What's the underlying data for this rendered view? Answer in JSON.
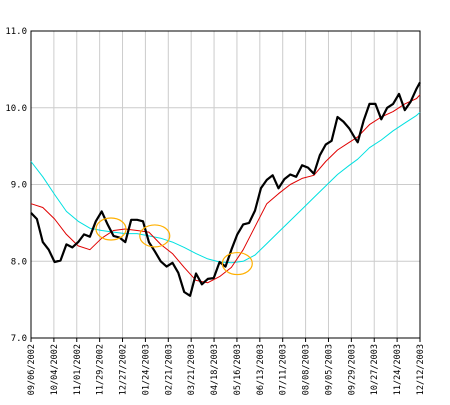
{
  "chart_data": {
    "type": "line",
    "title": "",
    "xlabel": "",
    "ylabel": "",
    "ylim": [
      7.0,
      11.0
    ],
    "y_ticks": [
      7.0,
      8.0,
      9.0,
      10.0,
      11.0
    ],
    "y_tick_labels": [
      "7.0",
      "8.0",
      "9.0",
      "10.0",
      "11.0"
    ],
    "x_range": [
      "2002-09-06",
      "2003-12-12"
    ],
    "x_tick_labels": [
      "09/06/2002",
      "10/04/2002",
      "11/01/2002",
      "11/29/2002",
      "12/27/2002",
      "01/24/2003",
      "02/21/2003",
      "03/21/2003",
      "04/18/2003",
      "05/16/2003",
      "06/13/2003",
      "07/11/2003",
      "08/08/2003",
      "09/05/2003",
      "09/29/2003",
      "10/27/2003",
      "11/24/2003",
      "12/12/2003"
    ],
    "grid": true,
    "legend": "none",
    "colors": {
      "price": "#000000",
      "fast_average": "#e00000",
      "slow_average": "#00e0e0",
      "crossover_markers": "#ffb000",
      "grid": "#cccccc"
    },
    "series": [
      {
        "key": "price",
        "x": [
          "2002-09-06",
          "2002-09-13",
          "2002-09-20",
          "2002-09-27",
          "2002-10-04",
          "2002-10-11",
          "2002-10-18",
          "2002-10-25",
          "2002-11-01",
          "2002-11-08",
          "2002-11-15",
          "2002-11-22",
          "2002-11-29",
          "2002-12-06",
          "2002-12-13",
          "2002-12-20",
          "2002-12-27",
          "2003-01-03",
          "2003-01-10",
          "2003-01-17",
          "2003-01-24",
          "2003-01-31",
          "2003-02-07",
          "2003-02-14",
          "2003-02-21",
          "2003-02-28",
          "2003-03-07",
          "2003-03-14",
          "2003-03-21",
          "2003-03-28",
          "2003-04-04",
          "2003-04-11",
          "2003-04-18",
          "2003-04-25",
          "2003-05-02",
          "2003-05-09",
          "2003-05-16",
          "2003-05-23",
          "2003-05-30",
          "2003-06-06",
          "2003-06-13",
          "2003-06-20",
          "2003-06-27",
          "2003-07-04",
          "2003-07-11",
          "2003-07-18",
          "2003-07-25",
          "2003-08-01",
          "2003-08-08",
          "2003-08-15",
          "2003-08-22",
          "2003-08-29",
          "2003-09-05",
          "2003-09-12",
          "2003-09-19",
          "2003-09-26",
          "2003-09-29",
          "2003-10-06",
          "2003-10-13",
          "2003-10-20",
          "2003-10-27",
          "2003-11-03",
          "2003-11-10",
          "2003-11-17",
          "2003-11-24",
          "2003-12-01",
          "2003-12-08",
          "2003-12-12"
        ],
        "values": [
          8.63,
          8.55,
          8.25,
          8.15,
          7.99,
          8.01,
          8.22,
          8.18,
          8.25,
          8.35,
          8.32,
          8.52,
          8.65,
          8.48,
          8.33,
          8.31,
          8.25,
          8.54,
          8.54,
          8.52,
          8.25,
          8.13,
          8.0,
          7.93,
          7.98,
          7.85,
          7.6,
          7.55,
          7.84,
          7.7,
          7.77,
          7.78,
          7.99,
          7.93,
          8.15,
          8.35,
          8.48,
          8.5,
          8.66,
          8.95,
          9.06,
          9.12,
          8.95,
          9.07,
          9.13,
          9.1,
          9.25,
          9.22,
          9.14,
          9.38,
          9.52,
          9.57,
          9.88,
          9.82,
          9.73,
          9.6,
          9.55,
          9.83,
          10.05,
          10.05,
          9.85,
          10.0,
          10.05,
          10.18,
          9.97,
          10.08,
          10.25,
          10.33
        ]
      },
      {
        "key": "fast_average",
        "x": [
          "2002-09-06",
          "2002-09-20",
          "2002-10-04",
          "2002-10-18",
          "2002-11-01",
          "2002-11-15",
          "2002-11-29",
          "2002-12-13",
          "2002-12-27",
          "2003-01-10",
          "2003-01-24",
          "2003-02-07",
          "2003-02-21",
          "2003-03-07",
          "2003-03-21",
          "2003-04-04",
          "2003-04-18",
          "2003-05-02",
          "2003-05-16",
          "2003-05-30",
          "2003-06-13",
          "2003-06-27",
          "2003-07-11",
          "2003-07-25",
          "2003-08-08",
          "2003-08-22",
          "2003-09-05",
          "2003-09-19",
          "2003-09-29",
          "2003-10-13",
          "2003-10-27",
          "2003-11-10",
          "2003-11-24",
          "2003-12-08",
          "2003-12-12"
        ],
        "values": [
          8.75,
          8.7,
          8.55,
          8.35,
          8.2,
          8.15,
          8.3,
          8.4,
          8.42,
          8.4,
          8.38,
          8.22,
          8.1,
          7.92,
          7.75,
          7.72,
          7.8,
          7.92,
          8.15,
          8.45,
          8.75,
          8.88,
          9.0,
          9.08,
          9.12,
          9.3,
          9.45,
          9.55,
          9.62,
          9.78,
          9.88,
          9.95,
          10.05,
          10.12,
          10.17
        ]
      },
      {
        "key": "slow_average",
        "x": [
          "2002-09-06",
          "2002-09-20",
          "2002-10-04",
          "2002-10-18",
          "2002-11-01",
          "2002-11-15",
          "2002-11-29",
          "2002-12-13",
          "2002-12-27",
          "2003-01-10",
          "2003-01-24",
          "2003-02-07",
          "2003-02-21",
          "2003-03-07",
          "2003-03-21",
          "2003-04-04",
          "2003-04-18",
          "2003-05-02",
          "2003-05-16",
          "2003-05-30",
          "2003-06-13",
          "2003-06-27",
          "2003-07-11",
          "2003-07-25",
          "2003-08-08",
          "2003-08-22",
          "2003-09-05",
          "2003-09-19",
          "2003-09-29",
          "2003-10-13",
          "2003-10-27",
          "2003-11-10",
          "2003-11-24",
          "2003-12-08",
          "2003-12-12"
        ],
        "values": [
          9.3,
          9.1,
          8.87,
          8.65,
          8.52,
          8.43,
          8.4,
          8.38,
          8.36,
          8.36,
          8.33,
          8.3,
          8.25,
          8.18,
          8.1,
          8.03,
          7.99,
          7.98,
          8.0,
          8.08,
          8.23,
          8.38,
          8.53,
          8.68,
          8.83,
          8.98,
          9.13,
          9.25,
          9.33,
          9.48,
          9.58,
          9.7,
          9.8,
          9.9,
          9.94
        ]
      }
    ],
    "annotations": [
      {
        "type": "ellipse",
        "x": "2002-12-10",
        "y": 8.42
      },
      {
        "type": "ellipse",
        "x": "2003-01-31",
        "y": 8.33
      },
      {
        "type": "ellipse",
        "x": "2003-05-09",
        "y": 7.97
      }
    ]
  }
}
